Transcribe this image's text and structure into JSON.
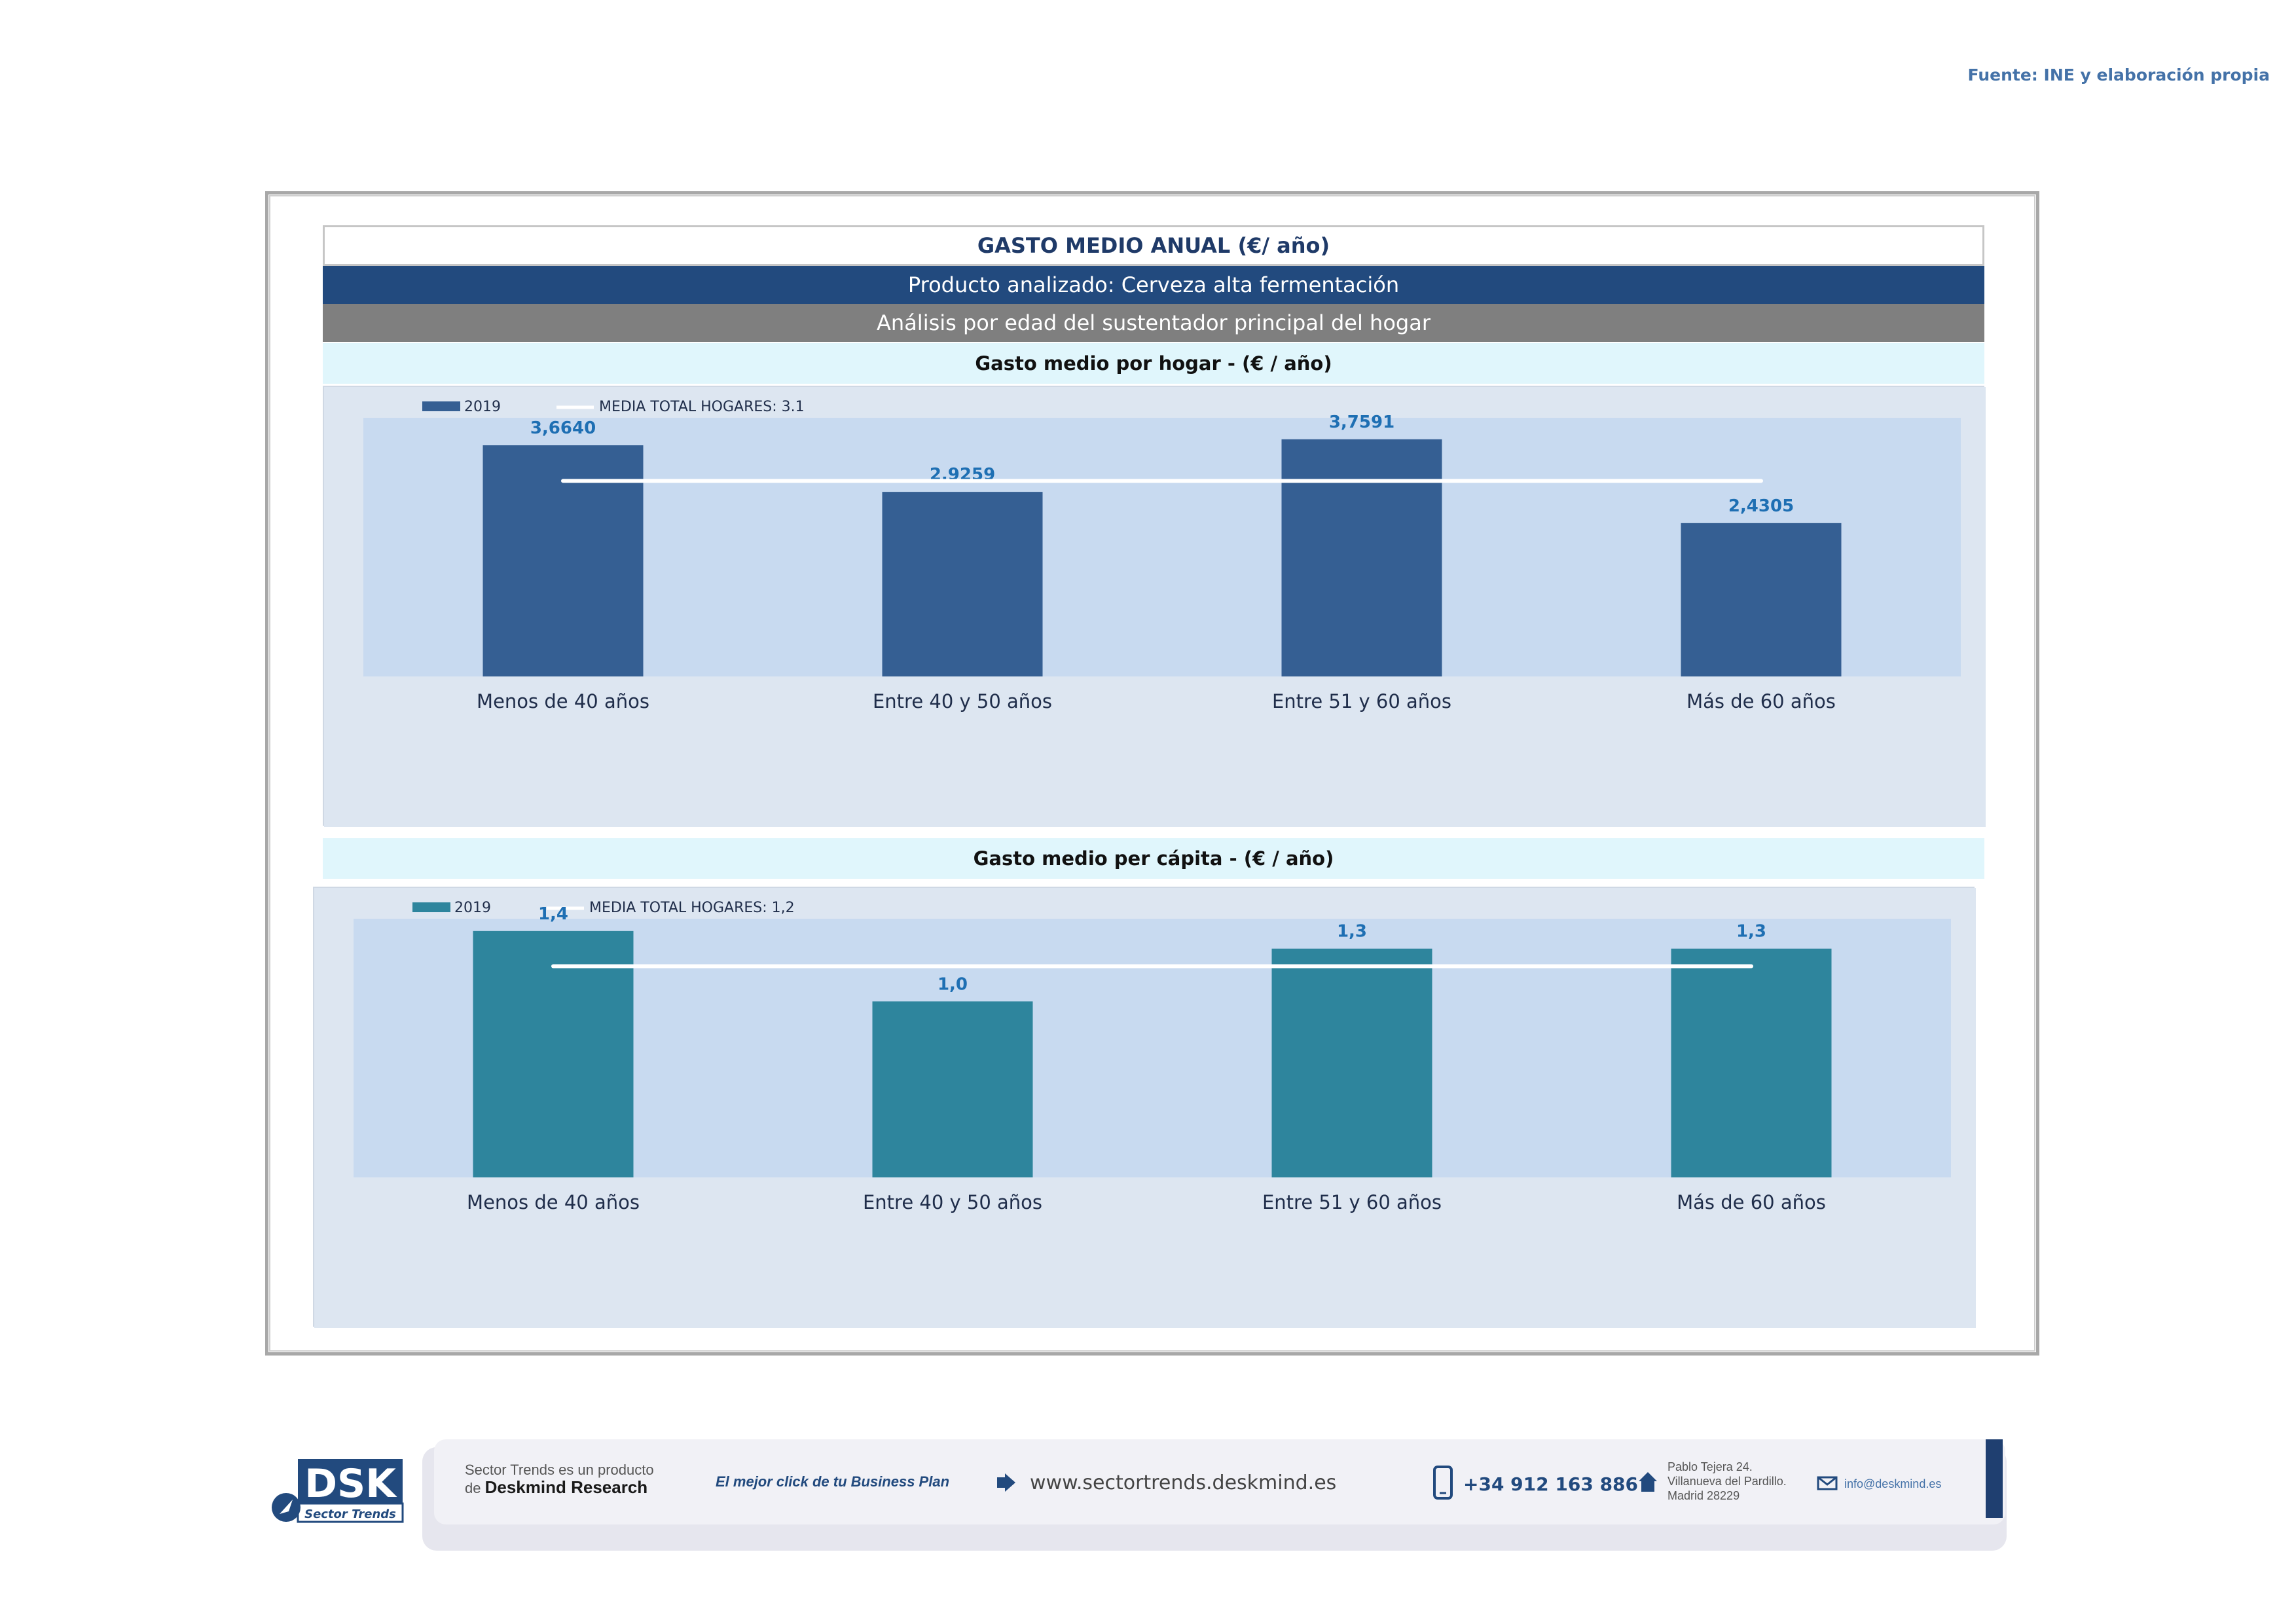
{
  "source": "Fuente: INE y elaboración propia",
  "header": {
    "title": "GASTO MEDIO ANUAL (€/ año)",
    "product": "Producto analizado: Cerveza alta fermentación",
    "analysis": "Análisis por edad del sustentador principal del hogar"
  },
  "colors": {
    "bar_hogar": "#355f93",
    "bar_capita": "#2e859d",
    "plot_bg": "#c8daf0",
    "panel_bg": "#dde6f1",
    "value_label": "#1e6fb3",
    "average_line": "#ffffff"
  },
  "chart_data": [
    {
      "type": "bar",
      "title": "Gasto medio por hogar -  (€ / año)",
      "categories": [
        "Menos de 40 años",
        "Entre 40 y 50 años",
        "Entre 51  y 60 años",
        "Más de 60 años"
      ],
      "series": [
        {
          "name": "2019",
          "values": [
            3.664,
            2.9259,
            3.7591,
            2.4305
          ],
          "labels": [
            "3,6640",
            "2,9259",
            "3,7591",
            "2,4305"
          ]
        }
      ],
      "average": {
        "name": "MEDIA TOTAL  HOGARES:",
        "value": 3.1,
        "label": "3.1"
      },
      "ylim": [
        0,
        4.1
      ],
      "grid": false,
      "legend": "top-left"
    },
    {
      "type": "bar",
      "title": "Gasto medio per cápita -  (€ / año)",
      "categories": [
        "Menos de 40 años",
        "Entre 40 y 50 años",
        "Entre 51  y 60 años",
        "Más de 60 años"
      ],
      "series": [
        {
          "name": "2019",
          "values": [
            1.4,
            1.0,
            1.3,
            1.3
          ],
          "labels": [
            "1,4",
            "1,0",
            "1,3",
            "1,3"
          ]
        }
      ],
      "average": {
        "name": "MEDIA TOTAL  HOGARES:",
        "value": 1.2,
        "label": "1,2"
      },
      "ylim": [
        0,
        1.47
      ],
      "grid": false,
      "legend": "top-left"
    }
  ],
  "footer": {
    "logo": "DSK",
    "logo_sub": "Sector Trends",
    "product_line1": "Sector Trends es un producto",
    "product_line2_prefix": "de ",
    "product_line2_brand": "Deskmind Research",
    "slogan": "El mejor click de tu Business Plan",
    "website": "www.sectortrends.deskmind.es",
    "phone": "+34 912 163 886",
    "address": [
      "Pablo Tejera 24.",
      "Villanueva del Pardillo.",
      "Madrid 28229"
    ],
    "email": "info@deskmind.es"
  }
}
